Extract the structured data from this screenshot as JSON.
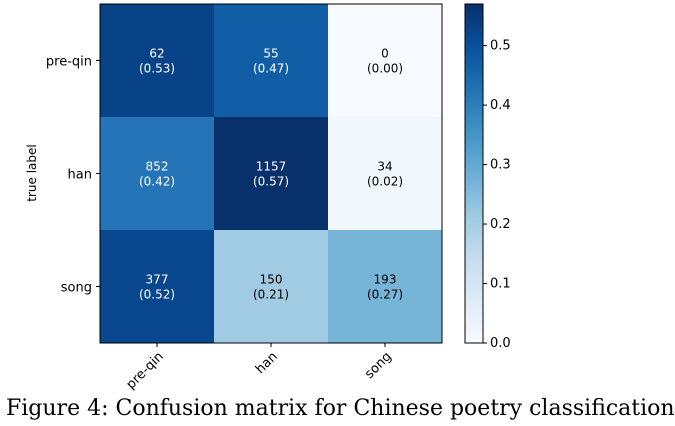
{
  "chart_data": {
    "type": "heatmap",
    "title": "",
    "ylabel": "true label",
    "xlabel": "",
    "rows": [
      "pre-qin",
      "han",
      "song"
    ],
    "cols": [
      "pre-qin",
      "han",
      "song"
    ],
    "counts": [
      [
        62,
        55,
        0
      ],
      [
        852,
        1157,
        34
      ],
      [
        377,
        150,
        193
      ]
    ],
    "ratios": [
      [
        0.53,
        0.47,
        0.0
      ],
      [
        0.42,
        0.57,
        0.02
      ],
      [
        0.52,
        0.21,
        0.27
      ]
    ],
    "ratio_labels": [
      [
        "(0.53)",
        "(0.47)",
        "(0.00)"
      ],
      [
        "(0.42)",
        "(0.57)",
        "(0.02)"
      ],
      [
        "(0.52)",
        "(0.21)",
        "(0.27)"
      ]
    ],
    "colorbar": {
      "min": 0.0,
      "max": 0.57,
      "ticks": [
        0.0,
        0.1,
        0.2,
        0.3,
        0.4,
        0.5
      ],
      "tick_labels": [
        "0.0",
        "0.1",
        "0.2",
        "0.3",
        "0.4",
        "0.5"
      ],
      "colormap": "Blues"
    }
  },
  "caption": {
    "text": "Figure 4: Confusion matrix for Chinese poetry classification"
  },
  "colors": {
    "light": "#f7fbff",
    "dark": "#08306b"
  }
}
